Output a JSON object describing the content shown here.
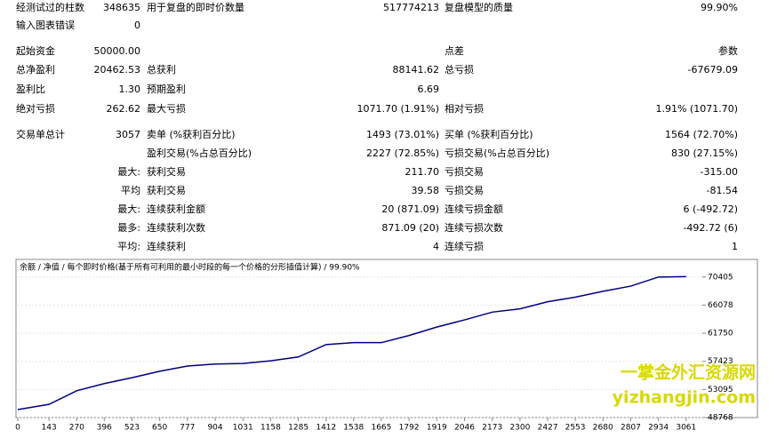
{
  "report": {
    "rows": [
      [
        "经测试过的柱数",
        "348635",
        "用于复盘的即时价数量",
        "517774213",
        "复盘模型的质量",
        "99.90%"
      ],
      [
        "输入图表错误",
        "0",
        null,
        null,
        null,
        null
      ],
      [
        "起始资金",
        "50000.00",
        null,
        null,
        "点差",
        "参数"
      ],
      [
        "总净盈利",
        "20462.53",
        "总获利",
        "88141.62",
        "总亏损",
        "-67679.09"
      ],
      [
        "盈利比",
        "1.30",
        "预期盈利",
        "6.69",
        null,
        null
      ],
      [
        "绝对亏损",
        "262.62",
        "最大亏损",
        "1071.70 (1.91%)",
        "相对亏损",
        "1.91% (1071.70)"
      ],
      [
        "交易单总计",
        "3057",
        "卖单 (%获利百分比)",
        "1493 (73.01%)",
        "买单 (%获利百分比)",
        "1564 (72.70%)"
      ],
      [
        null,
        null,
        "盈利交易(%占总百分比)",
        "2227 (72.85%)",
        "亏损交易(%占总百分比)",
        "830 (27.15%)"
      ],
      [
        null,
        "最大:",
        "获利交易",
        "211.70",
        "亏损交易",
        "-315.00"
      ],
      [
        null,
        "平均",
        "获利交易",
        "39.58",
        "亏损交易",
        "-81.54"
      ],
      [
        null,
        "最大:",
        "连续获利金额",
        "20 (871.09)",
        "连续亏损金额",
        "6 (-492.72)"
      ],
      [
        null,
        "最多:",
        "连续获利次数",
        "871.09 (20)",
        "连续亏损次数",
        "-492.72 (6)"
      ],
      [
        null,
        "平均:",
        "连续获利",
        "4",
        "连续亏损",
        "1"
      ]
    ]
  },
  "chart_data": {
    "type": "line",
    "legend": "余额 / 净值 / 每个即时价格(基于所有可利用的最小时段的每一个价格的分形插值计算) / 99.90%",
    "x": [
      0,
      143,
      270,
      396,
      523,
      650,
      777,
      904,
      1031,
      1158,
      1285,
      1412,
      1538,
      1665,
      1792,
      1919,
      2046,
      2173,
      2300,
      2427,
      2553,
      2680,
      2807,
      2934,
      3061
    ],
    "series": [
      {
        "color": "#000080",
        "values": [
          50000,
          50800,
          52900,
          54000,
          54900,
          55900,
          56700,
          57000,
          57100,
          57500,
          58100,
          60000,
          60300,
          60300,
          61400,
          62700,
          63800,
          65000,
          65500,
          66600,
          67300,
          68200,
          69000,
          70400,
          70463
        ]
      }
    ],
    "xlim": [
      0,
      3135
    ],
    "ylim": [
      48768,
      72700
    ],
    "xticks": [
      0,
      143,
      270,
      396,
      523,
      650,
      777,
      904,
      1031,
      1158,
      1285,
      1412,
      1538,
      1665,
      1792,
      1919,
      2046,
      2173,
      2300,
      2427,
      2553,
      2680,
      2807,
      2934,
      3061
    ],
    "yticks": [
      48768,
      53095,
      57423,
      61750,
      66078,
      70405
    ],
    "grid": true
  },
  "watermark": {
    "line1": "一掌金外汇资源网",
    "line2": "yizhangjin.com"
  }
}
